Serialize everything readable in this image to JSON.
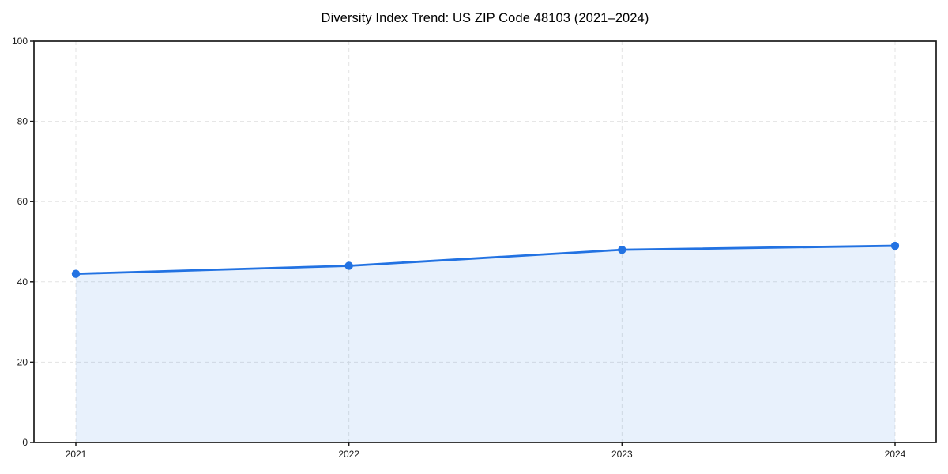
{
  "chart_data": {
    "type": "line",
    "title": "Diversity Index Trend: US ZIP Code 48103 (2021–2024)",
    "categories": [
      "2021",
      "2022",
      "2023",
      "2024"
    ],
    "series": [
      {
        "name": "Diversity Index",
        "values": [
          42,
          44,
          48,
          49
        ]
      }
    ],
    "xlabel": "",
    "ylabel": "",
    "ylim": [
      0,
      100
    ],
    "yticks": [
      0,
      20,
      40,
      60,
      80,
      100
    ],
    "grid": {
      "style": "dashed",
      "horizontal": true,
      "vertical": true
    },
    "legend": "none",
    "area_fill": true,
    "marker": "circle",
    "colors": {
      "line": "#2272e2",
      "fill": "#2272e2",
      "fill_opacity": 0.1,
      "grid": "#e3e3e3",
      "spine": "#1a1a1a",
      "tick": "#1a1a1a",
      "tick_label": "#1a1a1a",
      "title": "#000000"
    }
  }
}
